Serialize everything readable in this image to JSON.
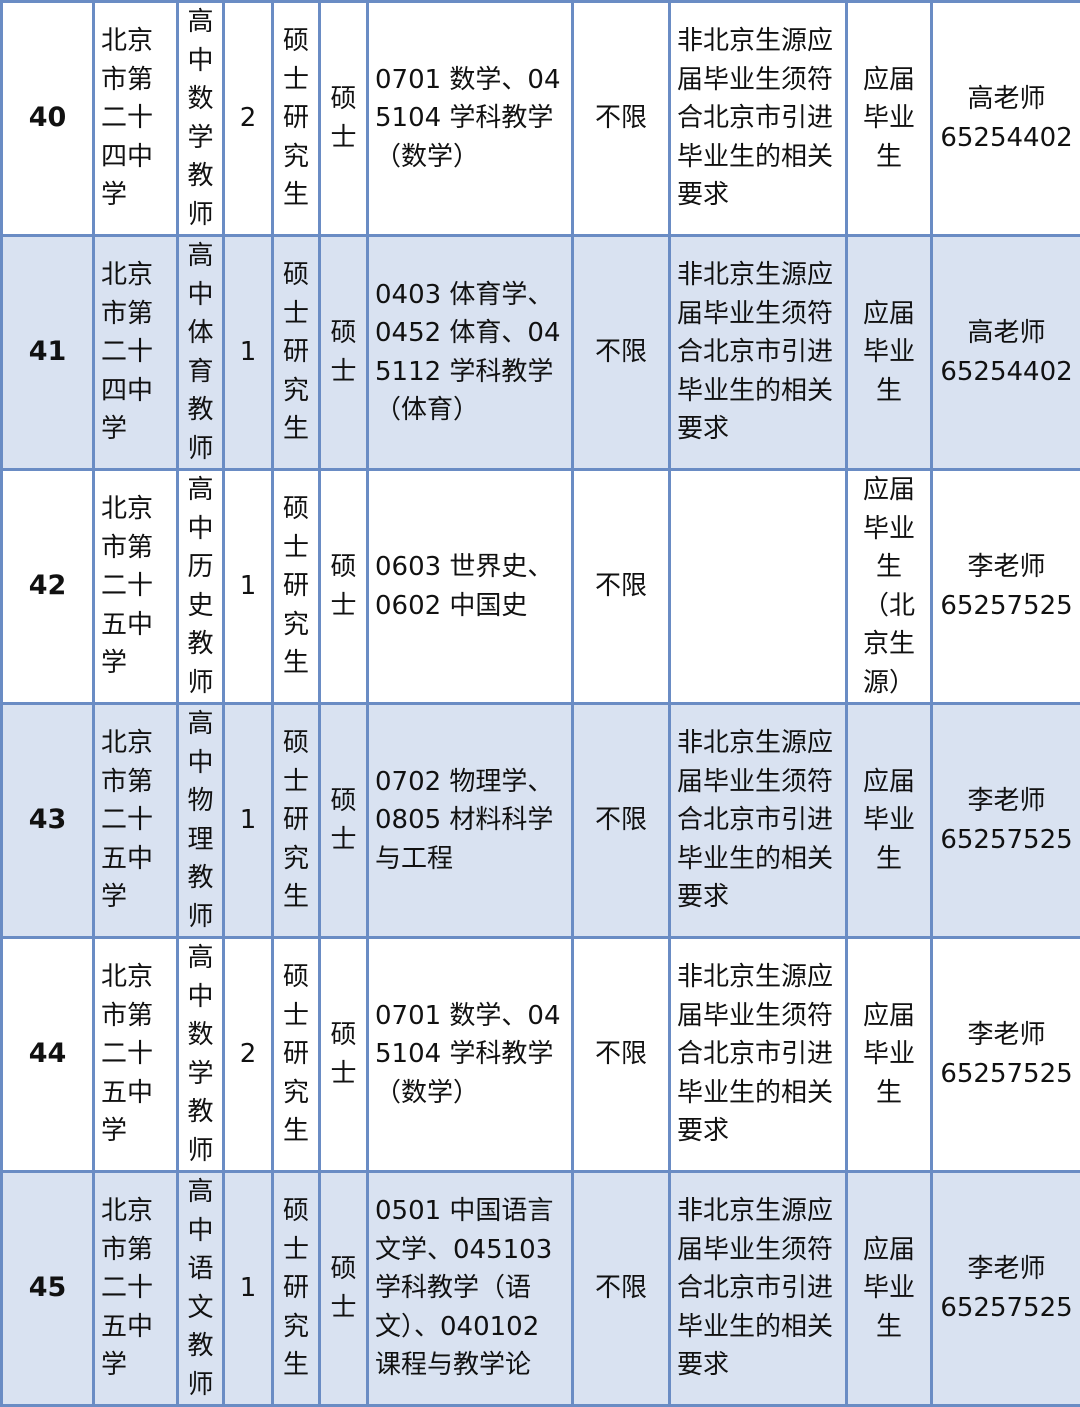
{
  "rows": [
    {
      "no": "40",
      "school": "北京市第二十四中学",
      "position": "高中数学教师",
      "count": "2",
      "education": "硕士研究生",
      "degree": "硕士",
      "major": "0701 数学、045104 学科教学（数学）",
      "age": "不限",
      "note": "非北京生源应届毕业生须符合北京市引进毕业生的相关要求",
      "type": "应届毕业生",
      "contact": "高老师 65254402"
    },
    {
      "no": "41",
      "school": "北京市第二十四中学",
      "position": "高中体育教师",
      "count": "1",
      "education": "硕士研究生",
      "degree": "硕士",
      "major": "0403 体育学、0452 体育、045112 学科教学（体育）",
      "age": "不限",
      "note": "非北京生源应届毕业生须符合北京市引进毕业生的相关要求",
      "type": "应届毕业生",
      "contact": "高老师 65254402"
    },
    {
      "no": "42",
      "school": "北京市第二十五中学",
      "position": "高中历史教师",
      "count": "1",
      "education": "硕士研究生",
      "degree": "硕士",
      "major": "0603 世界史、0602 中国史",
      "age": "不限",
      "note": "",
      "type": "应届毕业生（北京生源）",
      "contact": "李老师 65257525"
    },
    {
      "no": "43",
      "school": "北京市第二十五中学",
      "position": "高中物理教师",
      "count": "1",
      "education": "硕士研究生",
      "degree": "硕士",
      "major": "0702 物理学、0805 材料科学与工程",
      "age": "不限",
      "note": "非北京生源应届毕业生须符合北京市引进毕业生的相关要求",
      "type": "应届毕业生",
      "contact": "李老师 65257525"
    },
    {
      "no": "44",
      "school": "北京市第二十五中学",
      "position": "高中数学教师",
      "count": "2",
      "education": "硕士研究生",
      "degree": "硕士",
      "major": "0701 数学、045104 学科教学（数学）",
      "age": "不限",
      "note": "非北京生源应届毕业生须符合北京市引进毕业生的相关要求",
      "type": "应届毕业生",
      "contact": "李老师 65257525"
    },
    {
      "no": "45",
      "school": "北京市第二十五中学",
      "position": "高中语文教师",
      "count": "1",
      "education": "硕士研究生",
      "degree": "硕士",
      "major": "0501 中国语言文学、045103 学科教学（语文）、040102 课程与教学论",
      "age": "不限",
      "note": "非北京生源应届毕业生须符合北京市引进毕业生的相关要求",
      "type": "应届毕业生",
      "contact": "李老师 65257525"
    }
  ]
}
